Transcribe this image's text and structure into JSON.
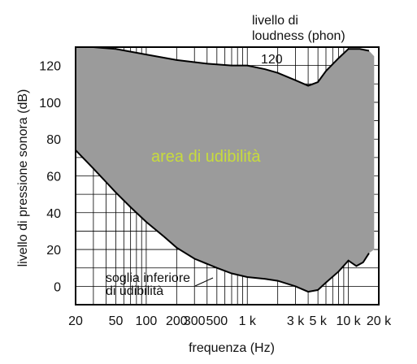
{
  "chart_data": {
    "type": "area",
    "title": "",
    "xlabel": "frequenza (Hz)",
    "ylabel": "livello di pressione sonora (dB)",
    "xscale": "log",
    "xlim": [
      20,
      20000
    ],
    "ylim": [
      -10,
      130
    ],
    "grid": true,
    "x_ticks": [
      20,
      50,
      100,
      200,
      300,
      500,
      1000,
      3000,
      5000,
      10000,
      20000
    ],
    "x_tick_labels": [
      "20",
      "50",
      "100",
      "200",
      "300",
      "500",
      "1 k",
      "3 k",
      "5 k",
      "10 k",
      "20 k"
    ],
    "y_ticks": [
      0,
      20,
      40,
      60,
      80,
      100,
      120
    ],
    "y_tick_labels": [
      "0",
      "20",
      "40",
      "60",
      "80",
      "100",
      "120"
    ],
    "upper_curve_label_line1": "livello di",
    "upper_curve_label_line2": "loudness (phon)",
    "upper_curve_value_label": "120",
    "lower_curve_label_line1": "soglia inferiore",
    "lower_curve_label_line2": "di udibilità",
    "region_label": "area di udibilità",
    "region_label_color": "#c8dc3c",
    "fill_color": "#9b9b9b",
    "series": [
      {
        "name": "120",
        "x": [
          20,
          30,
          50,
          100,
          200,
          400,
          700,
          1000,
          1500,
          2000,
          3000,
          4000,
          5000,
          6000,
          8000,
          10000,
          13000,
          16000
        ],
        "y": [
          130,
          130,
          129,
          126,
          123,
          121,
          120,
          120,
          118,
          116,
          112,
          109,
          111,
          117,
          124,
          129,
          129,
          128
        ]
      },
      {
        "name": "soglia inferiore di udibilità",
        "x": [
          20,
          30,
          50,
          70,
          100,
          150,
          200,
          300,
          500,
          700,
          1000,
          1500,
          2000,
          3000,
          4000,
          5000,
          6000,
          8000,
          10000,
          12000,
          14000,
          16000
        ],
        "y": [
          74,
          64,
          51,
          43,
          35,
          27,
          21,
          15,
          10,
          7,
          5,
          4,
          3,
          0,
          -3,
          -2,
          2,
          8,
          14,
          11,
          13,
          18
        ]
      }
    ]
  }
}
